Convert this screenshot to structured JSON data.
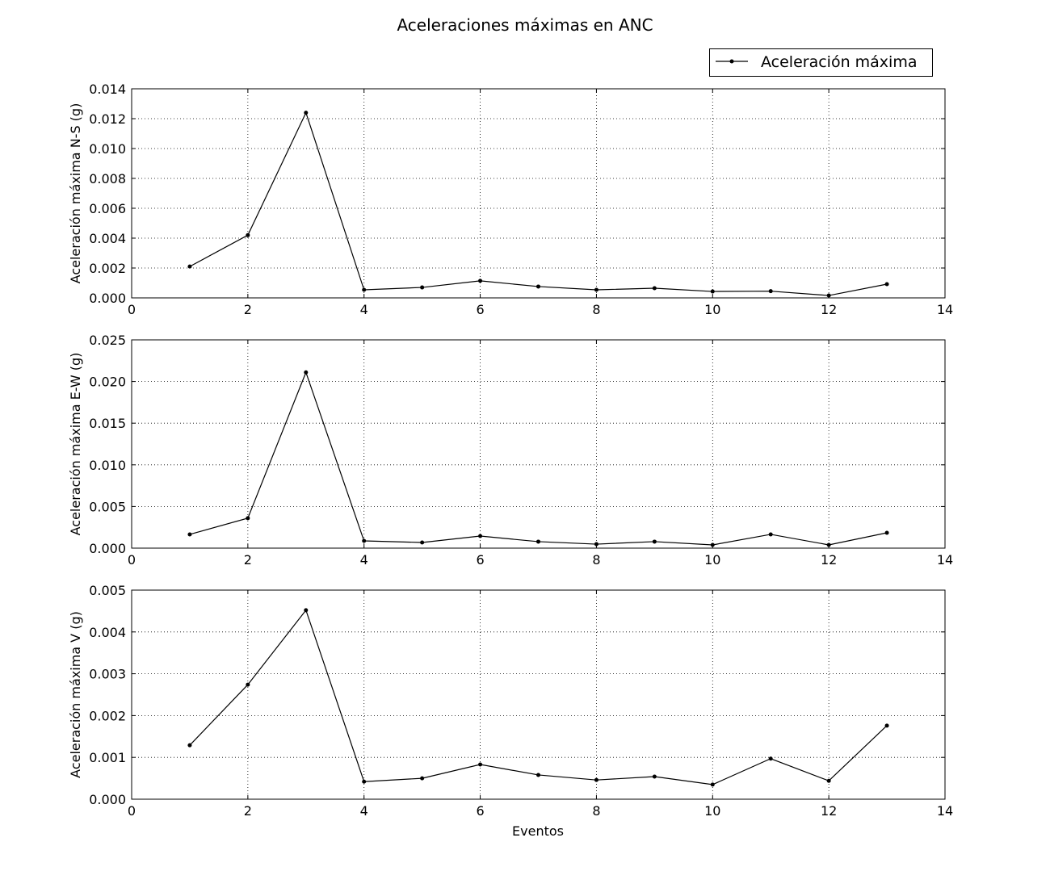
{
  "chart_data": {
    "type": "line",
    "title": "Aceleraciones máximas en ANC",
    "legend": {
      "label": "Aceleración máxima",
      "placement": "top-right"
    },
    "xlabel": "Eventos",
    "xlim": [
      0,
      14
    ],
    "xticks": [
      0,
      2,
      4,
      6,
      8,
      10,
      12,
      14
    ],
    "grid": true,
    "line_color": "#000000",
    "x": [
      1,
      2,
      3,
      4,
      5,
      6,
      7,
      8,
      9,
      10,
      11,
      12,
      13
    ],
    "subplots": [
      {
        "ylabel": "Aceleración máxima N-S (g)",
        "ylim": [
          0,
          0.014
        ],
        "yticks": [
          "0.000",
          "0.002",
          "0.004",
          "0.006",
          "0.008",
          "0.010",
          "0.012",
          "0.014"
        ],
        "values": [
          0.0021,
          0.0042,
          0.0124,
          0.00054,
          0.0007,
          0.00114,
          0.00076,
          0.00054,
          0.00065,
          0.00043,
          0.00045,
          0.00016,
          0.00092
        ]
      },
      {
        "ylabel": "Aceleración máxima E-W (g)",
        "ylim": [
          0,
          0.025
        ],
        "yticks": [
          "0.000",
          "0.005",
          "0.010",
          "0.015",
          "0.020",
          "0.025"
        ],
        "values": [
          0.00165,
          0.0036,
          0.0211,
          0.00087,
          0.00068,
          0.00145,
          0.00078,
          0.00048,
          0.00078,
          0.00039,
          0.00165,
          0.00039,
          0.00184
        ]
      },
      {
        "ylabel": "Aceleración máxima V (g)",
        "ylim": [
          0,
          0.005
        ],
        "yticks": [
          "0.000",
          "0.001",
          "0.002",
          "0.003",
          "0.004",
          "0.005"
        ],
        "values": [
          0.00129,
          0.00274,
          0.00452,
          0.00042,
          0.0005,
          0.00083,
          0.00058,
          0.00046,
          0.00054,
          0.00035,
          0.00097,
          0.00044,
          0.00176
        ]
      }
    ]
  }
}
